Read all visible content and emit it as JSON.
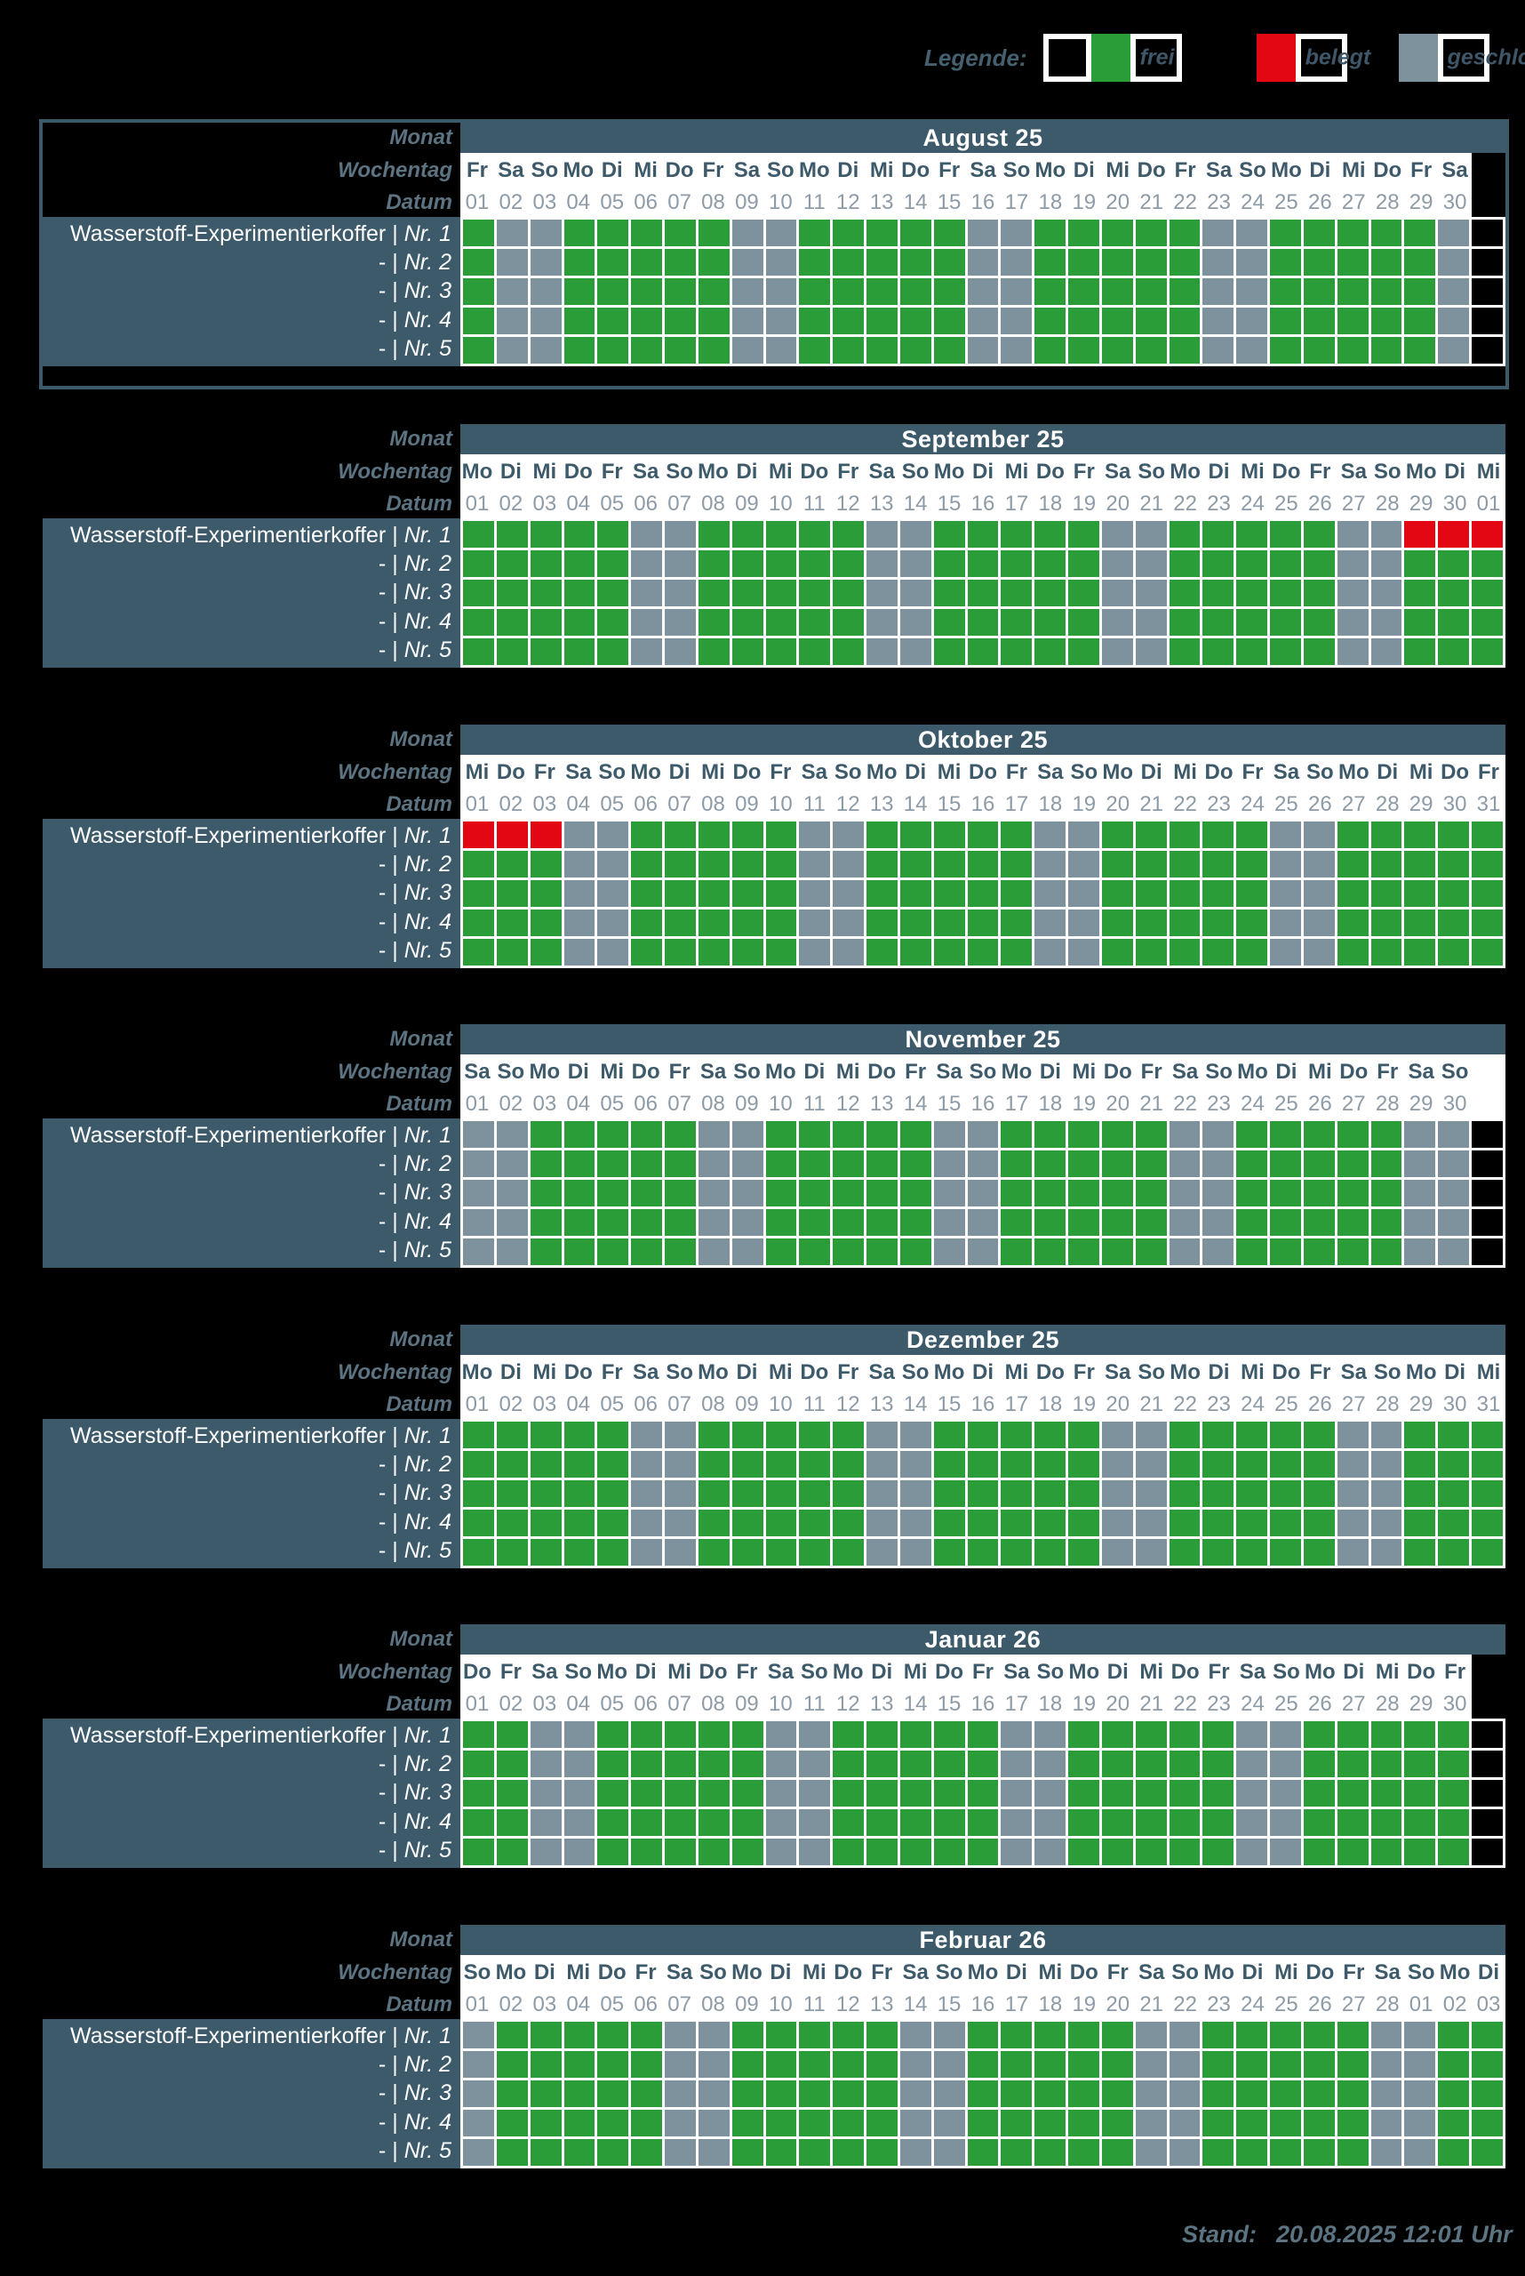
{
  "legend": {
    "title": "Legende:",
    "items": [
      {
        "key": "frei",
        "label": "frei",
        "leading_empty_box": true
      },
      {
        "key": "belegt",
        "label": "belegt",
        "leading_empty_box": false
      },
      {
        "key": "geschlossen",
        "label": "geschlossen",
        "leading_empty_box": false
      }
    ]
  },
  "colors": {
    "frei": "#2a9c38",
    "belegt": "#e30613",
    "geschlossen": "#7e929e",
    "table_slate": "#3d5a6b",
    "grid_lines": "#ffffff",
    "background": "#000000"
  },
  "header_labels": {
    "monat": "Monat",
    "wochentag": "Wochentag",
    "datum": "Datum"
  },
  "rows": [
    {
      "name": "Wasserstoff-Experimentierkoffer",
      "sep": "|",
      "nr": "Nr. 1"
    },
    {
      "name": "-",
      "sep": "|",
      "nr": "Nr. 2"
    },
    {
      "name": "-",
      "sep": "|",
      "nr": "Nr. 3"
    },
    {
      "name": "-",
      "sep": "|",
      "nr": "Nr. 4"
    },
    {
      "name": "-",
      "sep": "|",
      "nr": "Nr. 5"
    }
  ],
  "status_codes": {
    "F": "frei",
    "B": "belegt",
    "G": "geschlossen",
    "E": "none"
  },
  "months": [
    {
      "title": "August 25",
      "framed": true,
      "trailing": "black",
      "weekdays": [
        "Fr",
        "Sa",
        "So",
        "Mo",
        "Di",
        "Mi",
        "Do",
        "Fr",
        "Sa",
        "So",
        "Mo",
        "Di",
        "Mi",
        "Do",
        "Fr",
        "Sa",
        "So",
        "Mo",
        "Di",
        "Mi",
        "Do",
        "Fr",
        "Sa",
        "So",
        "Mo",
        "Di",
        "Mi",
        "Do",
        "Fr",
        "Sa"
      ],
      "dates": [
        "01",
        "02",
        "03",
        "04",
        "05",
        "06",
        "07",
        "08",
        "09",
        "10",
        "11",
        "12",
        "13",
        "14",
        "15",
        "16",
        "17",
        "18",
        "19",
        "20",
        "21",
        "22",
        "23",
        "24",
        "25",
        "26",
        "27",
        "28",
        "29",
        "30"
      ],
      "row_status": [
        "FGGFFFFFGGFFFFFGGFFFFFGGFFFFFGE",
        "FGGFFFFFGGFFFFFGGFFFFFGGFFFFFGE",
        "FGGFFFFFGGFFFFFGGFFFFFGGFFFFFGE",
        "FGGFFFFFGGFFFFFGGFFFFFGGFFFFFGE",
        "FGGFFFFFGGFFFFFGGFFFFFGGFFFFFGE"
      ]
    },
    {
      "title": "September 25",
      "framed": false,
      "trailing": null,
      "weekdays": [
        "Mo",
        "Di",
        "Mi",
        "Do",
        "Fr",
        "Sa",
        "So",
        "Mo",
        "Di",
        "Mi",
        "Do",
        "Fr",
        "Sa",
        "So",
        "Mo",
        "Di",
        "Mi",
        "Do",
        "Fr",
        "Sa",
        "So",
        "Mo",
        "Di",
        "Mi",
        "Do",
        "Fr",
        "Sa",
        "So",
        "Mo",
        "Di",
        "Mi"
      ],
      "dates": [
        "01",
        "02",
        "03",
        "04",
        "05",
        "06",
        "07",
        "08",
        "09",
        "10",
        "11",
        "12",
        "13",
        "14",
        "15",
        "16",
        "17",
        "18",
        "19",
        "20",
        "21",
        "22",
        "23",
        "24",
        "25",
        "26",
        "27",
        "28",
        "29",
        "30",
        "01"
      ],
      "row_status": [
        "FFFFFGGFFFFFGGFFFFFGGFFFFFGGBBB",
        "FFFFFGGFFFFFGGFFFFFGGFFFFFGGFFF",
        "FFFFFGGFFFFFGGFFFFFGGFFFFFGGFFF",
        "FFFFFGGFFFFFGGFFFFFGGFFFFFGGFFF",
        "FFFFFGGFFFFFGGFFFFFGGFFFFFGGFFF"
      ]
    },
    {
      "title": "Oktober 25",
      "framed": false,
      "trailing": null,
      "weekdays": [
        "Mi",
        "Do",
        "Fr",
        "Sa",
        "So",
        "Mo",
        "Di",
        "Mi",
        "Do",
        "Fr",
        "Sa",
        "So",
        "Mo",
        "Di",
        "Mi",
        "Do",
        "Fr",
        "Sa",
        "So",
        "Mo",
        "Di",
        "Mi",
        "Do",
        "Fr",
        "Sa",
        "So",
        "Mo",
        "Di",
        "Mi",
        "Do",
        "Fr"
      ],
      "dates": [
        "01",
        "02",
        "03",
        "04",
        "05",
        "06",
        "07",
        "08",
        "09",
        "10",
        "11",
        "12",
        "13",
        "14",
        "15",
        "16",
        "17",
        "18",
        "19",
        "20",
        "21",
        "22",
        "23",
        "24",
        "25",
        "26",
        "27",
        "28",
        "29",
        "30",
        "31"
      ],
      "row_status": [
        "BBBGGFFFFFGGFFFFFGGFFFFFGGFFFFF",
        "FFFGGFFFFFGGFFFFFGGFFFFFGGFFFFF",
        "FFFGGFFFFFGGFFFFFGGFFFFFGGFFFFF",
        "FFFGGFFFFFGGFFFFFGGFFFFFGGFFFFF",
        "FFFGGFFFFFGGFFFFFGGFFFFFGGFFFFF"
      ]
    },
    {
      "title": "November 25",
      "framed": false,
      "trailing": "white",
      "weekdays": [
        "Sa",
        "So",
        "Mo",
        "Di",
        "Mi",
        "Do",
        "Fr",
        "Sa",
        "So",
        "Mo",
        "Di",
        "Mi",
        "Do",
        "Fr",
        "Sa",
        "So",
        "Mo",
        "Di",
        "Mi",
        "Do",
        "Fr",
        "Sa",
        "So",
        "Mo",
        "Di",
        "Mi",
        "Do",
        "Fr",
        "Sa",
        "So"
      ],
      "dates": [
        "01",
        "02",
        "03",
        "04",
        "05",
        "06",
        "07",
        "08",
        "09",
        "10",
        "11",
        "12",
        "13",
        "14",
        "15",
        "16",
        "17",
        "18",
        "19",
        "20",
        "21",
        "22",
        "23",
        "24",
        "25",
        "26",
        "27",
        "28",
        "29",
        "30"
      ],
      "row_status": [
        "GGFFFFFGGFFFFFGGFFFFFGGFFFFFGGE",
        "GGFFFFFGGFFFFFGGFFFFFGGFFFFFGGE",
        "GGFFFFFGGFFFFFGGFFFFFGGFFFFFGGE",
        "GGFFFFFGGFFFFFGGFFFFFGGFFFFFGGE",
        "GGFFFFFGGFFFFFGGFFFFFGGFFFFFGGE"
      ]
    },
    {
      "title": "Dezember 25",
      "framed": false,
      "trailing": null,
      "weekdays": [
        "Mo",
        "Di",
        "Mi",
        "Do",
        "Fr",
        "Sa",
        "So",
        "Mo",
        "Di",
        "Mi",
        "Do",
        "Fr",
        "Sa",
        "So",
        "Mo",
        "Di",
        "Mi",
        "Do",
        "Fr",
        "Sa",
        "So",
        "Mo",
        "Di",
        "Mi",
        "Do",
        "Fr",
        "Sa",
        "So",
        "Mo",
        "Di",
        "Mi"
      ],
      "dates": [
        "01",
        "02",
        "03",
        "04",
        "05",
        "06",
        "07",
        "08",
        "09",
        "10",
        "11",
        "12",
        "13",
        "14",
        "15",
        "16",
        "17",
        "18",
        "19",
        "20",
        "21",
        "22",
        "23",
        "24",
        "25",
        "26",
        "27",
        "28",
        "29",
        "30",
        "31"
      ],
      "row_status": [
        "FFFFFGGFFFFFGGFFFFFGGFFFFFGGFFF",
        "FFFFFGGFFFFFGGFFFFFGGFFFFFGGFFF",
        "FFFFFGGFFFFFGGFFFFFGGFFFFFGGFFF",
        "FFFFFGGFFFFFGGFFFFFGGFFFFFGGFFF",
        "FFFFFGGFFFFFGGFFFFFGGFFFFFGGFFF"
      ]
    },
    {
      "title": "Januar 26",
      "framed": false,
      "trailing": "black",
      "weekdays": [
        "Do",
        "Fr",
        "Sa",
        "So",
        "Mo",
        "Di",
        "Mi",
        "Do",
        "Fr",
        "Sa",
        "So",
        "Mo",
        "Di",
        "Mi",
        "Do",
        "Fr",
        "Sa",
        "So",
        "Mo",
        "Di",
        "Mi",
        "Do",
        "Fr",
        "Sa",
        "So",
        "Mo",
        "Di",
        "Mi",
        "Do",
        "Fr"
      ],
      "dates": [
        "01",
        "02",
        "03",
        "04",
        "05",
        "06",
        "07",
        "08",
        "09",
        "10",
        "11",
        "12",
        "13",
        "14",
        "15",
        "16",
        "17",
        "18",
        "19",
        "20",
        "21",
        "22",
        "23",
        "24",
        "25",
        "26",
        "27",
        "28",
        "29",
        "30"
      ],
      "row_status": [
        "FFGGFFFFFGGFFFFFGGFFFFFGGFFFFFE",
        "FFGGFFFFFGGFFFFFGGFFFFFGGFFFFFE",
        "FFGGFFFFFGGFFFFFGGFFFFFGGFFFFFE",
        "FFGGFFFFFGGFFFFFGGFFFFFGGFFFFFE",
        "FFGGFFFFFGGFFFFFGGFFFFFGGFFFFFE"
      ]
    },
    {
      "title": "Februar 26",
      "framed": false,
      "trailing": null,
      "weekdays": [
        "So",
        "Mo",
        "Di",
        "Mi",
        "Do",
        "Fr",
        "Sa",
        "So",
        "Mo",
        "Di",
        "Mi",
        "Do",
        "Fr",
        "Sa",
        "So",
        "Mo",
        "Di",
        "Mi",
        "Do",
        "Fr",
        "Sa",
        "So",
        "Mo",
        "Di",
        "Mi",
        "Do",
        "Fr",
        "Sa",
        "So",
        "Mo",
        "Di"
      ],
      "dates": [
        "01",
        "02",
        "03",
        "04",
        "05",
        "06",
        "07",
        "08",
        "09",
        "10",
        "11",
        "12",
        "13",
        "14",
        "15",
        "16",
        "17",
        "18",
        "19",
        "20",
        "21",
        "22",
        "23",
        "24",
        "25",
        "26",
        "27",
        "28",
        "01",
        "02",
        "03"
      ],
      "row_status": [
        "GFFFFFGGFFFFFGGFFFFFGGFFFFFGGFF",
        "GFFFFFGGFFFFFGGFFFFFGGFFFFFGGFF",
        "GFFFFFGGFFFFFGGFFFFFGGFFFFFGGFF",
        "GFFFFFGGFFFFFGGFFFFFGGFFFFFGGFF",
        "GFFFFFGGFFFFFGGFFFFFGGFFFFFGGFF"
      ]
    }
  ],
  "footer": {
    "label": "Stand:",
    "value": "20.08.2025 12:01 Uhr"
  }
}
